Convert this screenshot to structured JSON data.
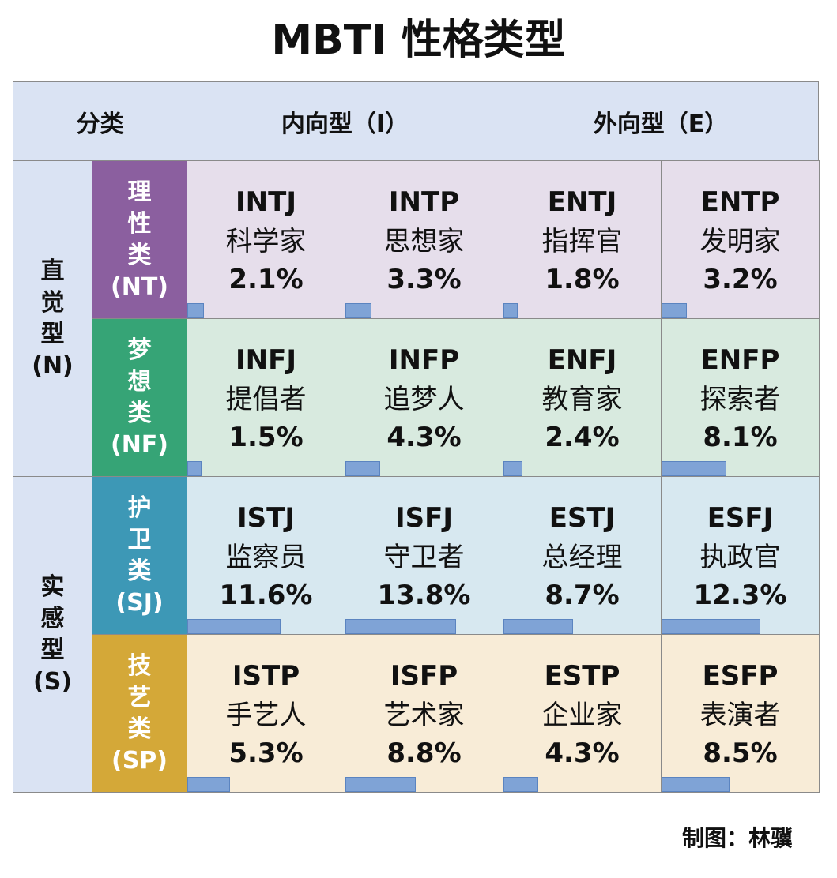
{
  "title": "MBTI 性格类型",
  "credit": "制图：林骥",
  "header": {
    "corner": "分类",
    "introvert": "内向型（I）",
    "extrovert": "外向型（E）"
  },
  "sides": {
    "intuitive": {
      "chars": [
        "直",
        "觉",
        "型"
      ],
      "code": "(N)"
    },
    "sensing": {
      "chars": [
        "实",
        "感",
        "型"
      ],
      "code": "(S)"
    }
  },
  "groups": [
    {
      "chars": [
        "理",
        "性",
        "类"
      ],
      "code": "(NT)",
      "color": "#8b5f9f"
    },
    {
      "chars": [
        "梦",
        "想",
        "类"
      ],
      "code": "(NF)",
      "color": "#36a476"
    },
    {
      "chars": [
        "护",
        "卫",
        "类"
      ],
      "code": "(SJ)",
      "color": "#3d98b6"
    },
    {
      "chars": [
        "技",
        "艺",
        "类"
      ],
      "code": "(SP)",
      "color": "#d4a838"
    }
  ],
  "row_colors": [
    "#e6deeb",
    "#d8eadf",
    "#d7e8f0",
    "#f8ecd7"
  ],
  "chart_data": {
    "type": "table",
    "title": "MBTI 性格类型",
    "bar_scale_max": 13.8,
    "rows": [
      [
        {
          "code": "INTJ",
          "role": "科学家",
          "pct_label": "2.1%",
          "pct": 2.1
        },
        {
          "code": "INTP",
          "role": "思想家",
          "pct_label": "3.3%",
          "pct": 3.3
        },
        {
          "code": "ENTJ",
          "role": "指挥官",
          "pct_label": "1.8%",
          "pct": 1.8
        },
        {
          "code": "ENTP",
          "role": "发明家",
          "pct_label": "3.2%",
          "pct": 3.2
        }
      ],
      [
        {
          "code": "INFJ",
          "role": "提倡者",
          "pct_label": "1.5%",
          "pct": 1.5
        },
        {
          "code": "INFP",
          "role": "追梦人",
          "pct_label": "4.3%",
          "pct": 4.3
        },
        {
          "code": "ENFJ",
          "role": "教育家",
          "pct_label": "2.4%",
          "pct": 2.4
        },
        {
          "code": "ENFP",
          "role": "探索者",
          "pct_label": "8.1%",
          "pct": 8.1
        }
      ],
      [
        {
          "code": "ISTJ",
          "role": "监察员",
          "pct_label": "11.6%",
          "pct": 11.6
        },
        {
          "code": "ISFJ",
          "role": "守卫者",
          "pct_label": "13.8%",
          "pct": 13.8
        },
        {
          "code": "ESTJ",
          "role": "总经理",
          "pct_label": "8.7%",
          "pct": 8.7
        },
        {
          "code": "ESFJ",
          "role": "执政官",
          "pct_label": "12.3%",
          "pct": 12.3
        }
      ],
      [
        {
          "code": "ISTP",
          "role": "手艺人",
          "pct_label": "5.3%",
          "pct": 5.3
        },
        {
          "code": "ISFP",
          "role": "艺术家",
          "pct_label": "8.8%",
          "pct": 8.8
        },
        {
          "code": "ESTP",
          "role": "企业家",
          "pct_label": "4.3%",
          "pct": 4.3
        },
        {
          "code": "ESFP",
          "role": "表演者",
          "pct_label": "8.5%",
          "pct": 8.5
        }
      ]
    ]
  }
}
